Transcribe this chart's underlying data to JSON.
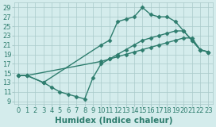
{
  "line1_x": [
    0,
    1,
    3,
    10,
    11,
    12,
    13,
    14,
    15,
    16,
    17,
    18,
    19,
    20,
    21,
    22,
    23
  ],
  "line1_y": [
    14.5,
    14.5,
    13,
    21,
    22,
    26,
    26.5,
    27,
    29,
    27.5,
    27,
    27,
    26,
    24,
    22,
    20,
    19.5
  ],
  "line2_x": [
    0,
    1,
    10,
    11,
    12,
    13,
    14,
    15,
    16,
    17,
    18,
    19,
    20,
    21,
    22,
    23
  ],
  "line2_y": [
    14.5,
    14.5,
    17.5,
    18,
    18.5,
    19,
    19.5,
    20,
    20.5,
    21,
    21.5,
    22,
    22.5,
    22.5,
    20,
    19.5
  ],
  "line3_x": [
    0,
    1,
    3,
    4,
    5,
    6,
    7,
    8,
    9,
    10,
    11,
    12,
    13,
    14,
    15,
    16,
    17,
    18,
    19,
    20,
    21,
    22,
    23
  ],
  "line3_y": [
    14.5,
    14.5,
    13,
    12,
    11,
    10.5,
    10,
    9.5,
    14,
    17,
    18,
    19,
    20,
    21,
    22,
    22.5,
    23,
    23.5,
    24,
    24,
    22,
    20,
    19.5
  ],
  "color": "#2e7d6e",
  "bg_color": "#d4ecec",
  "grid_color": "#aacaca",
  "xlabel": "Humidex (Indice chaleur)",
  "yticks": [
    9,
    11,
    13,
    15,
    17,
    19,
    21,
    23,
    25,
    27,
    29
  ],
  "xticks": [
    0,
    1,
    2,
    3,
    4,
    5,
    6,
    7,
    8,
    9,
    10,
    11,
    12,
    13,
    14,
    15,
    16,
    17,
    18,
    19,
    20,
    21,
    22,
    23
  ],
  "xlim": [
    -0.5,
    23.5
  ],
  "ylim": [
    8.5,
    30
  ],
  "marker": "D",
  "markersize": 2.5,
  "linewidth": 1.0,
  "xlabel_fontsize": 7.5,
  "tick_fontsize": 6.0
}
